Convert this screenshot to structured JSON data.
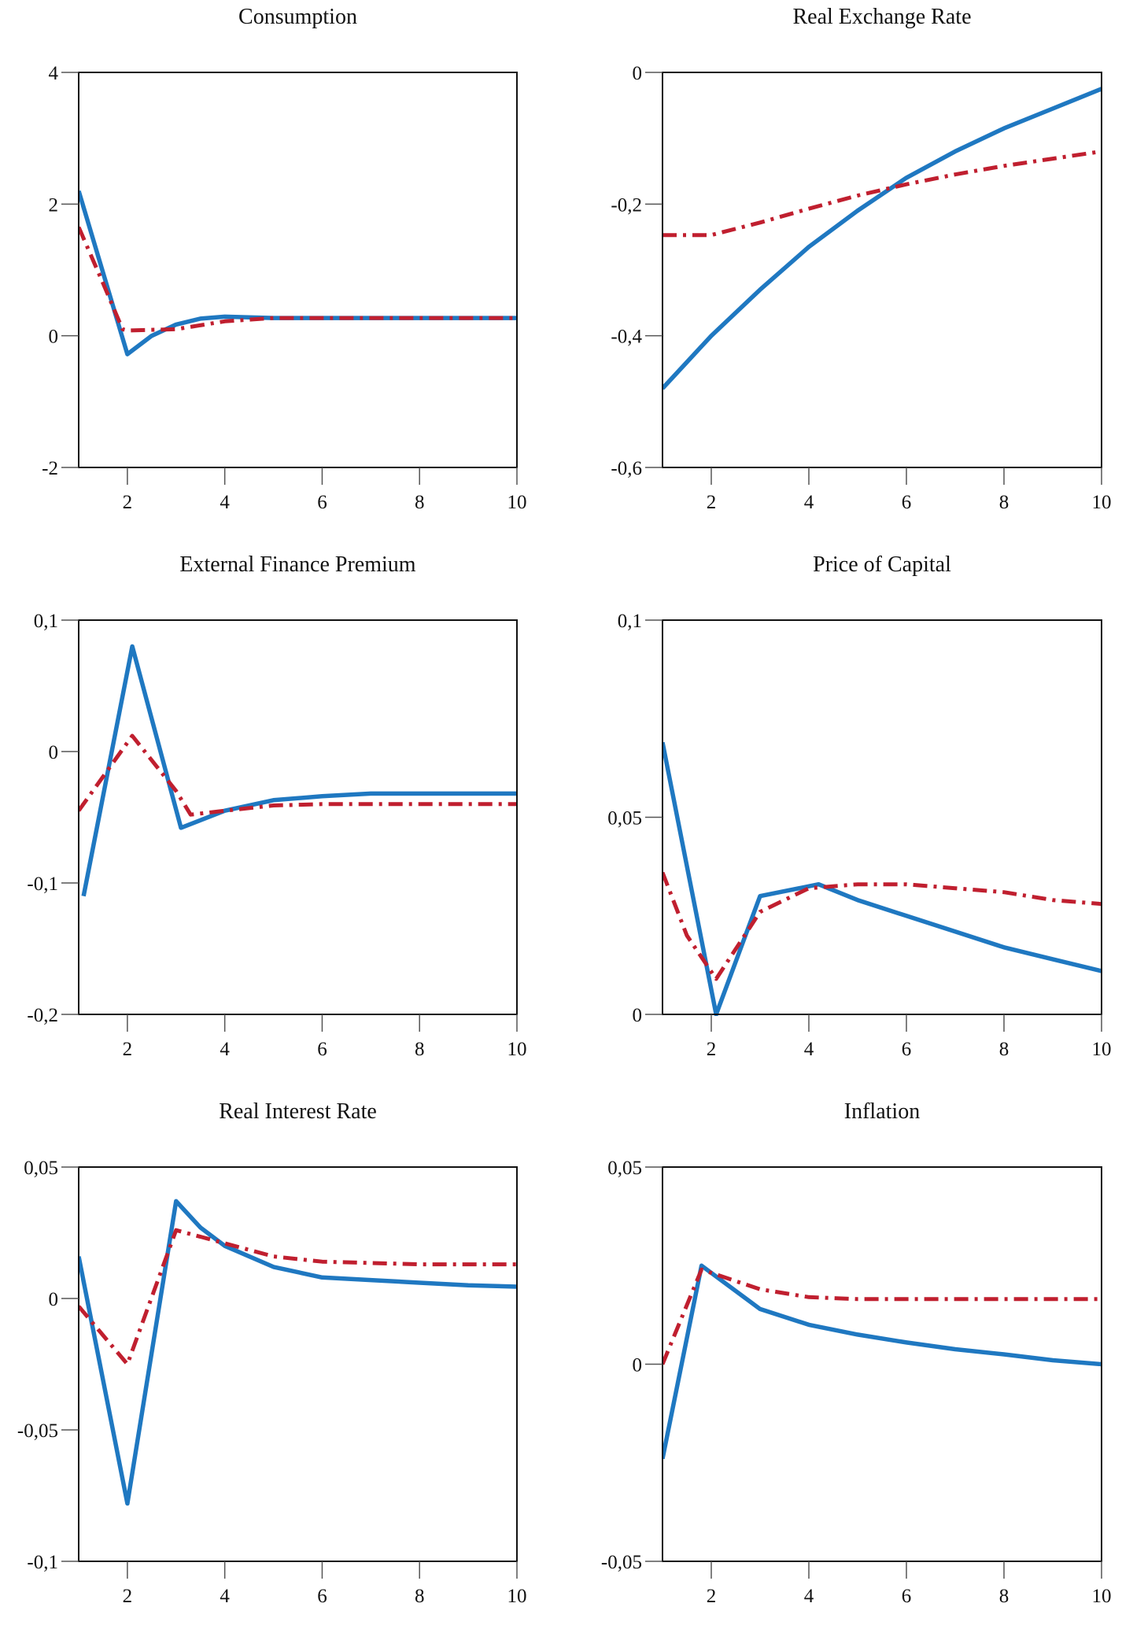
{
  "colors": {
    "series_solid": "#1f78c1",
    "series_dashdot": "#c01f2f",
    "axis": "#111111"
  },
  "chart_data": [
    {
      "type": "line",
      "title": "Consumption",
      "xlim": [
        1,
        10
      ],
      "ylim": [
        -2,
        4
      ],
      "xticks": [
        2,
        4,
        6,
        8,
        10
      ],
      "xtick_labels": [
        "2",
        "4",
        "6",
        "8",
        "10"
      ],
      "yticks": [
        -2,
        0,
        2,
        4
      ],
      "ytick_labels": [
        "-2",
        "0",
        "2",
        "4"
      ],
      "grid": false,
      "series": [
        {
          "style": "solid",
          "x": [
            1,
            2,
            2.5,
            3,
            3.5,
            4,
            4.5,
            5,
            6,
            7,
            8,
            9,
            10
          ],
          "y": [
            2.2,
            -0.28,
            0.0,
            0.17,
            0.26,
            0.29,
            0.28,
            0.27,
            0.27,
            0.27,
            0.27,
            0.27,
            0.27
          ]
        },
        {
          "style": "dashdot",
          "x": [
            1,
            1.5,
            1.9,
            2,
            3,
            4,
            5,
            6,
            7,
            8,
            9,
            10
          ],
          "y": [
            1.65,
            0.8,
            0.1,
            0.08,
            0.1,
            0.22,
            0.27,
            0.27,
            0.27,
            0.27,
            0.27,
            0.27
          ]
        }
      ]
    },
    {
      "type": "line",
      "title": "Real Exchange Rate",
      "xlim": [
        1,
        10
      ],
      "ylim": [
        -0.6,
        0
      ],
      "xticks": [
        2,
        4,
        6,
        8,
        10
      ],
      "xtick_labels": [
        "2",
        "4",
        "6",
        "8",
        "10"
      ],
      "yticks": [
        -0.6,
        -0.4,
        -0.2,
        0
      ],
      "ytick_labels": [
        "-0,6",
        "-0,4",
        "-0,2",
        "0"
      ],
      "grid": false,
      "series": [
        {
          "style": "solid",
          "x": [
            1,
            2,
            3,
            4,
            5,
            6,
            7,
            8,
            9,
            10
          ],
          "y": [
            -0.48,
            -0.4,
            -0.33,
            -0.265,
            -0.21,
            -0.16,
            -0.12,
            -0.085,
            -0.055,
            -0.025
          ]
        },
        {
          "style": "dashdot",
          "x": [
            1,
            2,
            3,
            4,
            5,
            6,
            7,
            8,
            9,
            10
          ],
          "y": [
            -0.247,
            -0.247,
            -0.228,
            -0.207,
            -0.187,
            -0.17,
            -0.155,
            -0.142,
            -0.131,
            -0.12
          ]
        }
      ]
    },
    {
      "type": "line",
      "title": "External Finance Premium",
      "xlim": [
        1,
        10
      ],
      "ylim": [
        -0.2,
        0.1
      ],
      "xticks": [
        2,
        4,
        6,
        8,
        10
      ],
      "xtick_labels": [
        "2",
        "4",
        "6",
        "8",
        "10"
      ],
      "yticks": [
        -0.2,
        -0.1,
        0,
        0.1
      ],
      "ytick_labels": [
        "-0,2",
        "-0,1",
        "0",
        "0,1"
      ],
      "grid": false,
      "series": [
        {
          "style": "solid",
          "x": [
            1.1,
            2.1,
            3.1,
            4,
            5,
            6,
            7,
            8,
            9,
            10
          ],
          "y": [
            -0.11,
            0.08,
            -0.058,
            -0.045,
            -0.037,
            -0.034,
            -0.032,
            -0.032,
            -0.032,
            -0.032
          ]
        },
        {
          "style": "dashdot",
          "x": [
            1,
            2.1,
            3,
            3.3,
            4,
            5,
            6,
            7,
            8,
            9,
            10
          ],
          "y": [
            -0.045,
            0.012,
            -0.03,
            -0.048,
            -0.045,
            -0.041,
            -0.04,
            -0.04,
            -0.04,
            -0.04,
            -0.04
          ]
        }
      ]
    },
    {
      "type": "line",
      "title": "Price of Capital",
      "xlim": [
        1,
        10
      ],
      "ylim": [
        0,
        0.1
      ],
      "xticks": [
        2,
        4,
        6,
        8,
        10
      ],
      "xtick_labels": [
        "2",
        "4",
        "6",
        "8",
        "10"
      ],
      "yticks": [
        0,
        0.05,
        0.1
      ],
      "ytick_labels": [
        "0",
        "0,05",
        "0,1"
      ],
      "grid": false,
      "series": [
        {
          "style": "solid",
          "x": [
            1,
            2.1,
            3,
            4.2,
            5,
            6,
            7,
            8,
            9,
            10
          ],
          "y": [
            0.069,
            0.0,
            0.03,
            0.033,
            0.029,
            0.025,
            0.021,
            0.017,
            0.014,
            0.011
          ]
        },
        {
          "style": "dashdot",
          "x": [
            1,
            1.5,
            2.1,
            3,
            4,
            5,
            6,
            7,
            8,
            9,
            10
          ],
          "y": [
            0.036,
            0.02,
            0.009,
            0.026,
            0.032,
            0.033,
            0.033,
            0.032,
            0.031,
            0.029,
            0.028
          ]
        }
      ]
    },
    {
      "type": "line",
      "title": "Real Interest Rate",
      "xlim": [
        1,
        10
      ],
      "ylim": [
        -0.1,
        0.05
      ],
      "xticks": [
        2,
        4,
        6,
        8,
        10
      ],
      "xtick_labels": [
        "2",
        "4",
        "6",
        "8",
        "10"
      ],
      "yticks": [
        -0.1,
        -0.05,
        0,
        0.05
      ],
      "ytick_labels": [
        "-0,1",
        "-0,05",
        "0",
        "0,05"
      ],
      "grid": false,
      "series": [
        {
          "style": "solid",
          "x": [
            1,
            2,
            3,
            3.5,
            4,
            5,
            6,
            7,
            8,
            9,
            10
          ],
          "y": [
            0.016,
            -0.078,
            0.037,
            0.027,
            0.02,
            0.012,
            0.008,
            0.007,
            0.006,
            0.005,
            0.0045
          ]
        },
        {
          "style": "dashdot",
          "x": [
            1,
            2,
            3,
            4,
            5,
            6,
            7,
            8,
            9,
            10
          ],
          "y": [
            -0.003,
            -0.025,
            0.026,
            0.021,
            0.016,
            0.014,
            0.0135,
            0.013,
            0.013,
            0.013
          ]
        }
      ]
    },
    {
      "type": "line",
      "title": "Inflation",
      "xlim": [
        1,
        10
      ],
      "ylim": [
        -0.05,
        0.05
      ],
      "xticks": [
        2,
        4,
        6,
        8,
        10
      ],
      "xtick_labels": [
        "2",
        "4",
        "6",
        "8",
        "10"
      ],
      "yticks": [
        -0.05,
        0,
        0.05
      ],
      "ytick_labels": [
        "-0,05",
        "0",
        "0,05"
      ],
      "grid": false,
      "series": [
        {
          "style": "solid",
          "x": [
            1,
            1.8,
            3,
            4,
            5,
            6,
            7,
            8,
            9,
            10
          ],
          "y": [
            -0.024,
            0.025,
            0.014,
            0.01,
            0.0075,
            0.0055,
            0.0038,
            0.0025,
            0.001,
            0.0
          ]
        },
        {
          "style": "dashdot",
          "x": [
            1,
            1.8,
            3,
            4,
            5,
            6,
            7,
            8,
            9,
            10
          ],
          "y": [
            0.0,
            0.024,
            0.019,
            0.017,
            0.0165,
            0.0165,
            0.0165,
            0.0165,
            0.0165,
            0.0165
          ]
        }
      ]
    }
  ]
}
